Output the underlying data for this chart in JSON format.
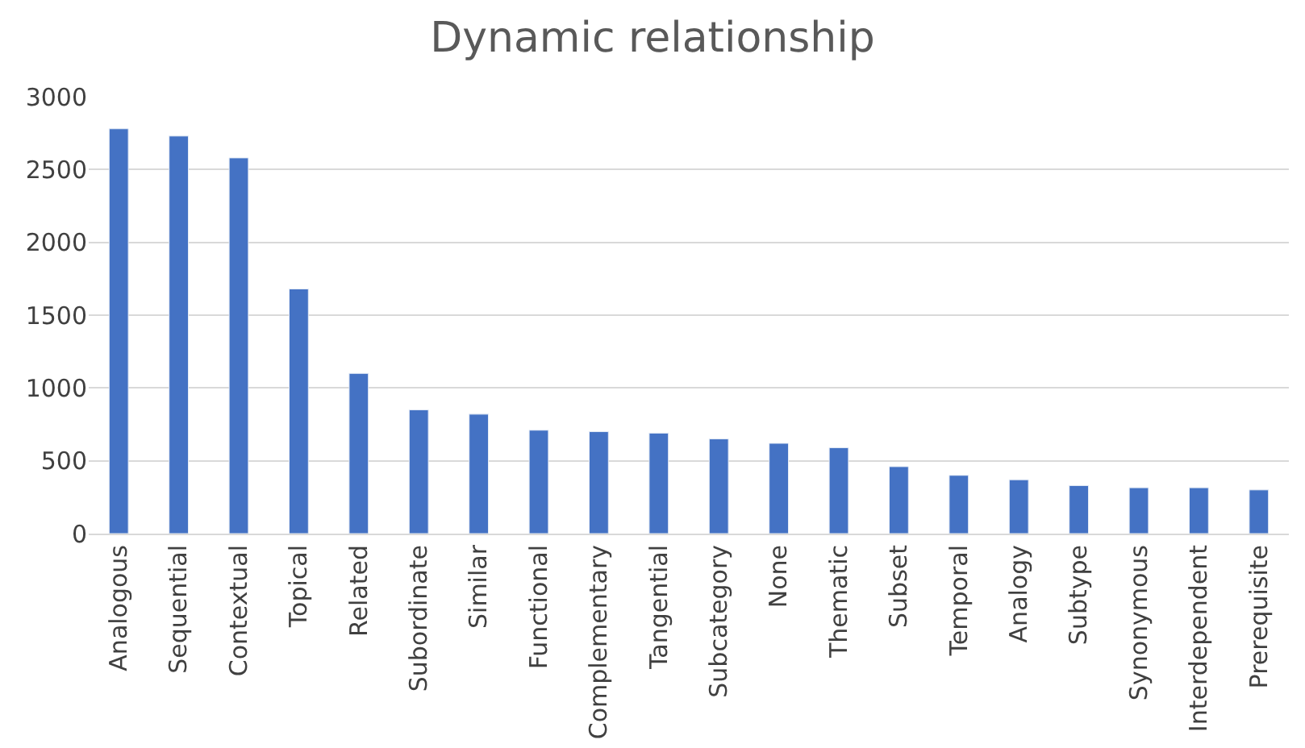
{
  "chart_data": {
    "type": "bar",
    "title": "Dynamic relationship",
    "categories": [
      "Analogous",
      "Sequential",
      "Contextual",
      "Topical",
      "Related",
      "Subordinate",
      "Similar",
      "Functional",
      "Complementary",
      "Tangential",
      "Subcategory",
      "None",
      "Thematic",
      "Subset",
      "Temporal",
      "Analogy",
      "Subtype",
      "Synonymous",
      "Interdependent",
      "Prerequisite"
    ],
    "values": [
      2780,
      2730,
      2580,
      1680,
      1100,
      850,
      820,
      710,
      700,
      690,
      650,
      620,
      590,
      460,
      400,
      370,
      330,
      315,
      315,
      300
    ],
    "color": "#4472c4",
    "ylim": [
      0,
      3000
    ],
    "yticks": [
      0,
      500,
      1000,
      1500,
      2000,
      2500,
      3000
    ],
    "grid": "y"
  }
}
